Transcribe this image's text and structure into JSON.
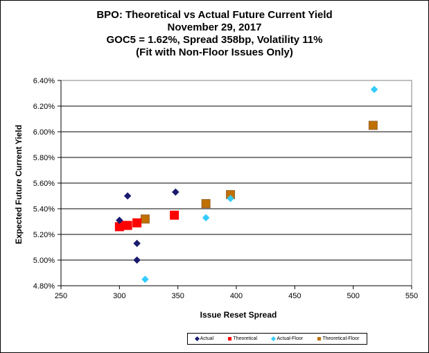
{
  "chart_data": {
    "type": "scatter",
    "title": [
      "BPO: Theoretical vs Actual Future Current Yield",
      "November 29, 2017",
      "GOC5 = 1.62%, Spread 358bp, Volatility 11%",
      "(Fit with Non-Floor Issues Only)"
    ],
    "xlabel": "Issue  Reset  Spread",
    "ylabel": "Expected Future Current Yield",
    "xlim": [
      250,
      550
    ],
    "ylim": [
      4.8,
      6.4
    ],
    "x_ticks": [
      "250",
      "300",
      "350",
      "400",
      "450",
      "500",
      "550"
    ],
    "y_ticks": [
      "4.80%",
      "5.00%",
      "5.20%",
      "5.40%",
      "5.60%",
      "5.80%",
      "6.00%",
      "6.20%",
      "6.40%"
    ],
    "series": [
      {
        "name": "Actual",
        "marker": "diamond",
        "color": "#1a1a6e",
        "points": [
          [
            300,
            5.31
          ],
          [
            307,
            5.5
          ],
          [
            315,
            5.13
          ],
          [
            315,
            5.0
          ],
          [
            348,
            5.53
          ]
        ]
      },
      {
        "name": "Theoretical",
        "marker": "square",
        "color": "#ff0000",
        "points": [
          [
            300,
            5.26
          ],
          [
            303,
            5.27
          ],
          [
            307,
            5.27
          ],
          [
            315,
            5.29
          ],
          [
            347,
            5.35
          ]
        ]
      },
      {
        "name": "Actual-Floor",
        "marker": "diamond",
        "color": "#33ccff",
        "points": [
          [
            322,
            4.85
          ],
          [
            374,
            5.33
          ],
          [
            395,
            5.48
          ],
          [
            518,
            6.33
          ]
        ]
      },
      {
        "name": "Theoretical-Floor",
        "marker": "square",
        "color": "#c07000",
        "points": [
          [
            322,
            5.32
          ],
          [
            374,
            5.44
          ],
          [
            395,
            5.51
          ],
          [
            517,
            6.05
          ]
        ]
      }
    ],
    "grid": "horizontal",
    "legend_position": "bottom"
  }
}
